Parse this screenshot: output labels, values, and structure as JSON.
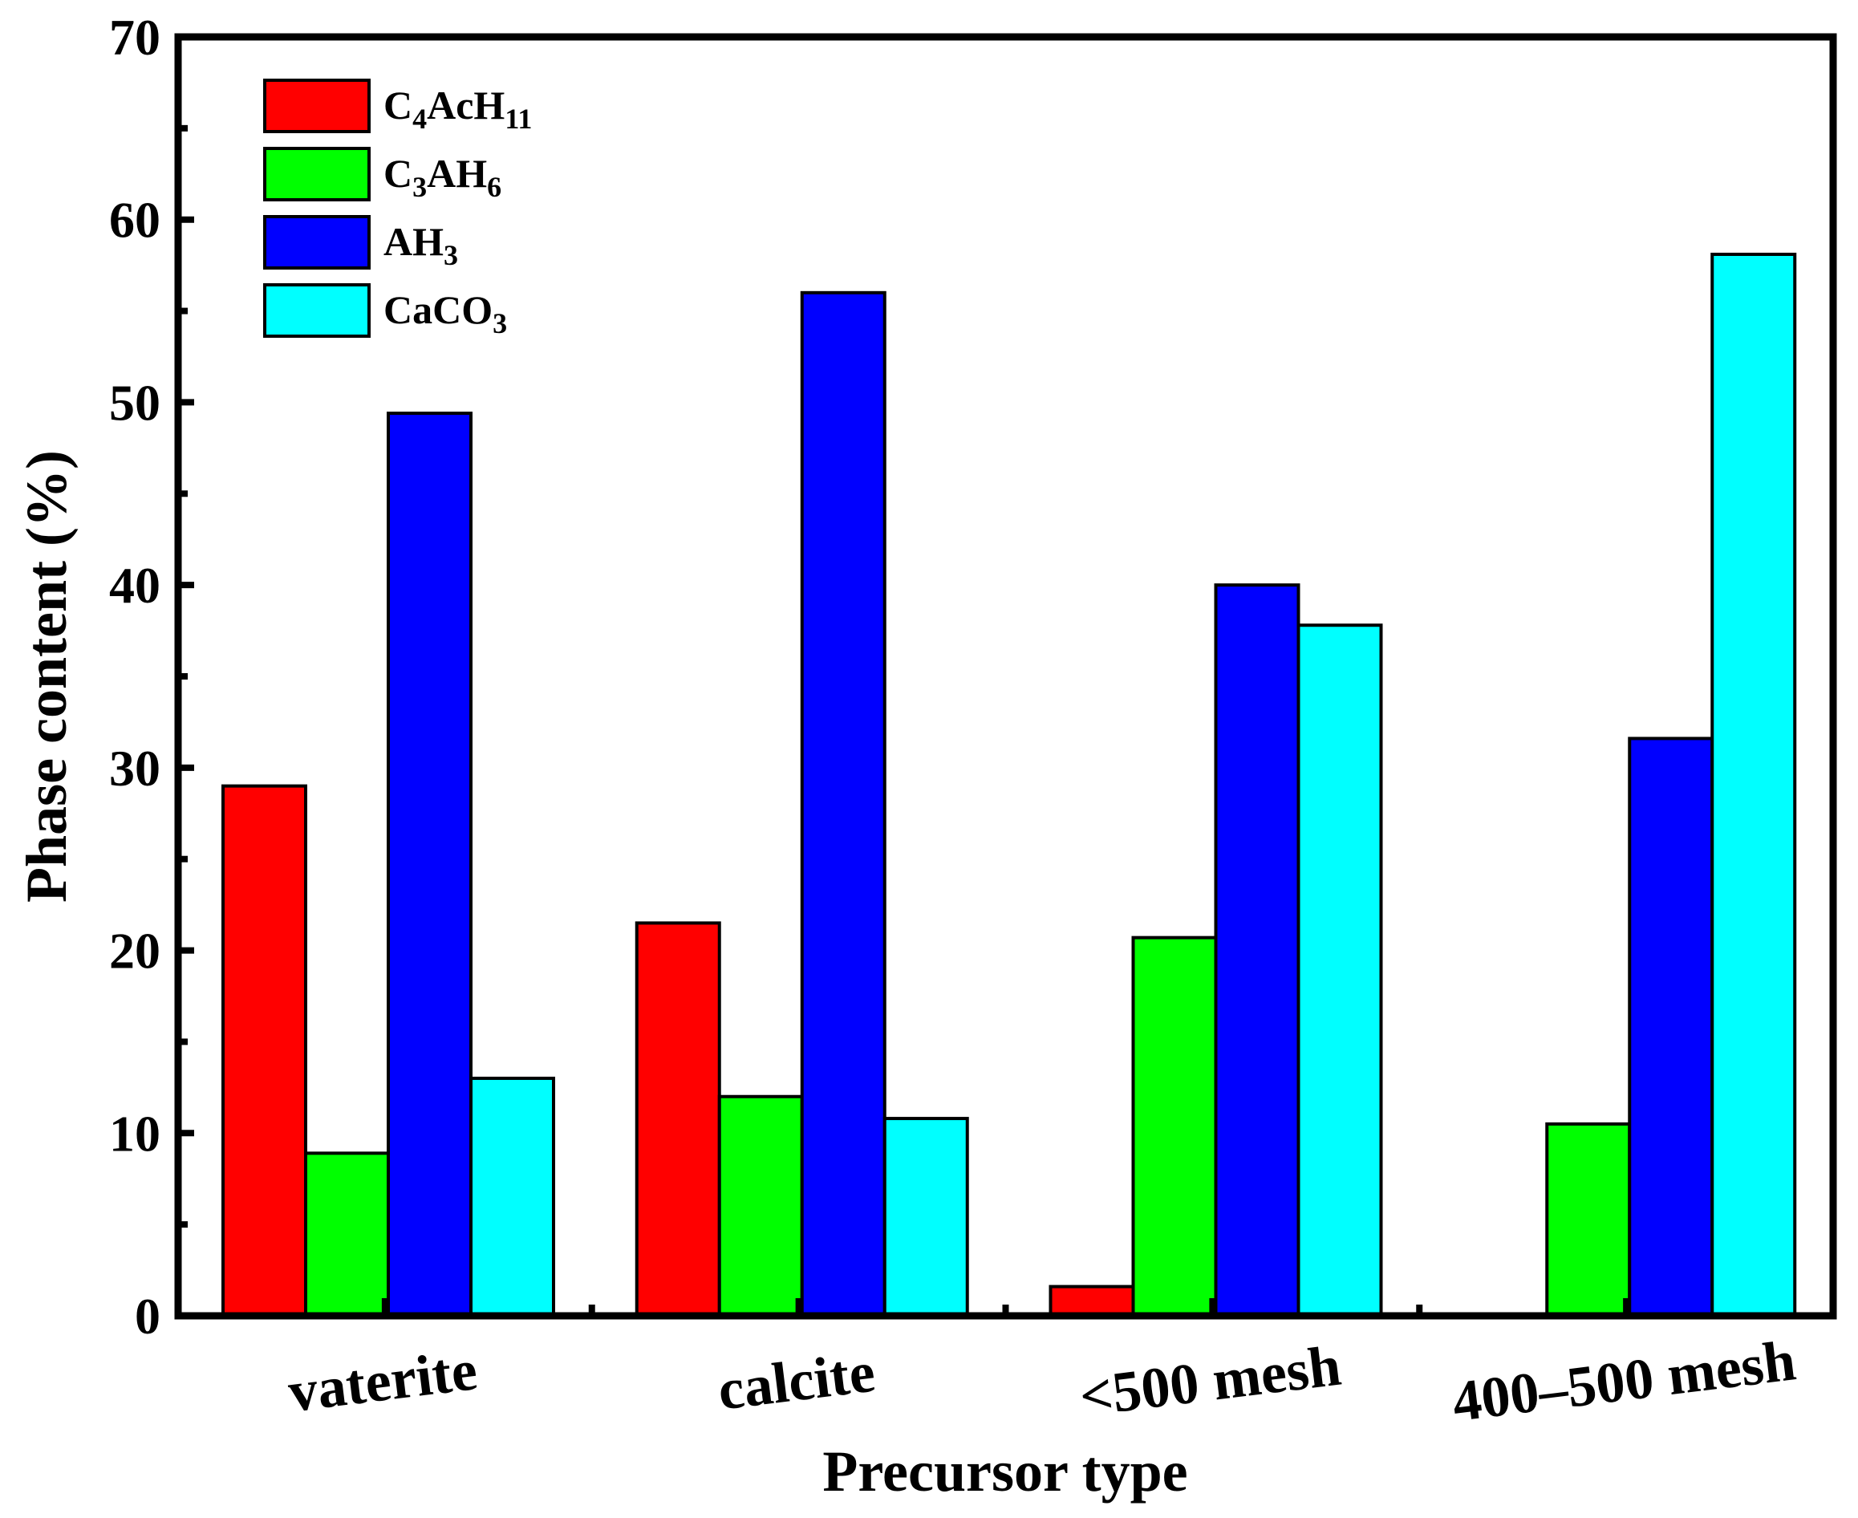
{
  "chart_data": {
    "type": "bar",
    "title": "",
    "xlabel": "Precursor type",
    "ylabel": "Phase content (%)",
    "ylim": [
      0,
      70
    ],
    "yticks": [
      0,
      10,
      20,
      30,
      40,
      50,
      60,
      70
    ],
    "grid": false,
    "legend_position": "top-left",
    "categories": [
      "vaterite",
      "calcite",
      "<500 mesh",
      "400–500 mesh"
    ],
    "series": [
      {
        "name": "C4AcH11",
        "label_parts": [
          [
            "C",
            ""
          ],
          [
            "4",
            "sub"
          ],
          [
            "AcH",
            ""
          ],
          [
            "11",
            "sub"
          ]
        ],
        "color": "#ff0000",
        "values": [
          29.0,
          21.5,
          1.6,
          0
        ]
      },
      {
        "name": "C3AH6",
        "label_parts": [
          [
            "C",
            ""
          ],
          [
            "3",
            "sub"
          ],
          [
            "AH",
            ""
          ],
          [
            "6",
            "sub"
          ]
        ],
        "color": "#00ff00",
        "values": [
          8.9,
          12.0,
          20.7,
          10.5
        ]
      },
      {
        "name": "AH3",
        "label_parts": [
          [
            "AH",
            ""
          ],
          [
            "3",
            "sub"
          ]
        ],
        "color": "#0000ff",
        "values": [
          49.4,
          56.0,
          40.0,
          31.6
        ]
      },
      {
        "name": "CaCO3",
        "label_parts": [
          [
            "CaCO",
            ""
          ],
          [
            "3",
            "sub"
          ]
        ],
        "color": "#00ffff",
        "values": [
          13.0,
          10.8,
          37.8,
          58.1
        ]
      }
    ]
  }
}
